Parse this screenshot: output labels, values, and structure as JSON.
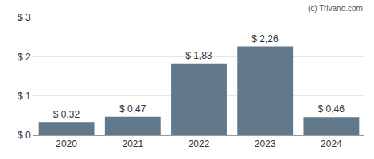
{
  "chart_data": {
    "type": "bar",
    "categories": [
      "2020",
      "2021",
      "2022",
      "2023",
      "2024"
    ],
    "values": [
      0.32,
      0.47,
      1.83,
      2.26,
      0.46
    ],
    "value_labels": [
      "$ 0,32",
      "$ 0,47",
      "$ 1,83",
      "$ 2,26",
      "$ 0,46"
    ],
    "data_labels": true,
    "color": "#62798b",
    "ylim": [
      0,
      3
    ],
    "yticks": [
      {
        "value": 0,
        "label": "$ 0"
      },
      {
        "value": 1,
        "label": "$ 1"
      },
      {
        "value": 2,
        "label": "$ 2"
      },
      {
        "value": 3,
        "label": "$ 3"
      }
    ],
    "grid": true,
    "annotations": [
      "(c) Trivano.com"
    ]
  }
}
